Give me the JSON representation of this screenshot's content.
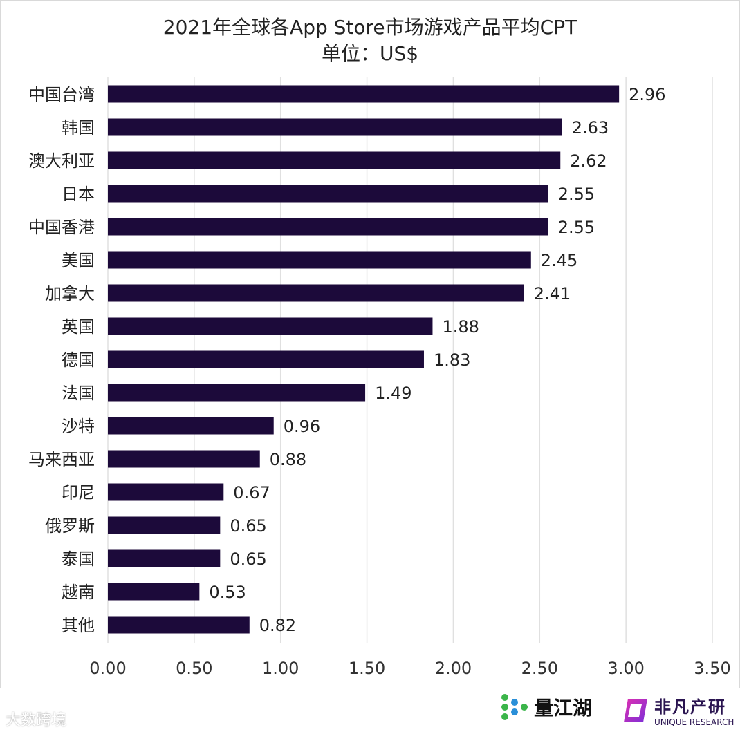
{
  "chart_data": {
    "type": "bar",
    "orientation": "horizontal",
    "title": "2021年全球各App Store市场游戏产品平均CPT",
    "subtitle": "单位：US$",
    "categories": [
      "中国台湾",
      "韩国",
      "澳大利亚",
      "日本",
      "中国香港",
      "美国",
      "加拿大",
      "英国",
      "德国",
      "法国",
      "沙特",
      "马来西亚",
      "印尼",
      "俄罗斯",
      "泰国",
      "越南",
      "其他"
    ],
    "values": [
      2.96,
      2.63,
      2.62,
      2.55,
      2.55,
      2.45,
      2.41,
      1.88,
      1.83,
      1.49,
      0.96,
      0.88,
      0.67,
      0.65,
      0.65,
      0.53,
      0.82
    ],
    "value_labels": [
      "2.96",
      "2.63",
      "2.62",
      "2.55",
      "2.55",
      "2.45",
      "2.41",
      "1.88",
      "1.83",
      "1.49",
      "0.96",
      "0.88",
      "0.67",
      "0.65",
      "0.65",
      "0.53",
      "0.82"
    ],
    "xticks": [
      "0.00",
      "0.50",
      "1.00",
      "1.50",
      "2.00",
      "2.50",
      "3.00",
      "3.50"
    ],
    "xlim": [
      0,
      3.5
    ],
    "grid": "vertical",
    "bar_color": "#1c0a3a",
    "grid_color": "#e0e0e0"
  },
  "logos": {
    "liangjianghu": "量江湖",
    "feifan": "非凡产研",
    "feifan_en": "UNIQUE RESEARCH",
    "watermark": "大数跨境"
  }
}
